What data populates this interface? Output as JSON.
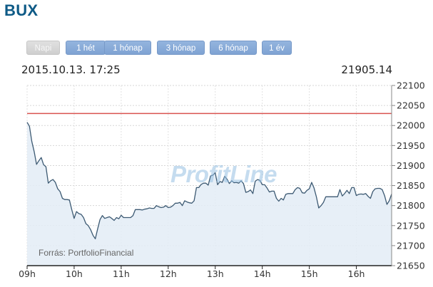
{
  "title": "BUX",
  "tabs": [
    {
      "label": "Napi",
      "active": true
    },
    {
      "label": "1 hét",
      "active": false
    },
    {
      "label": "1 hónap",
      "active": false
    },
    {
      "label": "3 hónap",
      "active": false
    },
    {
      "label": "6 hónap",
      "active": false
    },
    {
      "label": "1 év",
      "active": false
    }
  ],
  "datetime": "2015.10.13. 17:25",
  "current_value": "21905.14",
  "watermark": "ProfitLine",
  "source": "Forrás: PortfolioFinancial",
  "colors": {
    "title": "#0e5a86",
    "line": "#3d5a73",
    "fill": "#e3ecf6",
    "reference_line": "#d9534f",
    "watermark": "#96c0e1"
  },
  "chart_data": {
    "type": "area",
    "xlabel": "",
    "ylabel": "",
    "xlim": [
      9.0,
      16.75
    ],
    "ylim": [
      21650,
      22100
    ],
    "yticks": [
      21650,
      21700,
      21750,
      21800,
      21850,
      21900,
      21950,
      22000,
      22050,
      22100
    ],
    "xticks": [
      {
        "value": 9,
        "label": "09h"
      },
      {
        "value": 10,
        "label": "10h"
      },
      {
        "value": 11,
        "label": "11h"
      },
      {
        "value": 12,
        "label": "12h"
      },
      {
        "value": 13,
        "label": "13h"
      },
      {
        "value": 14,
        "label": "14h"
      },
      {
        "value": 15,
        "label": "15h"
      },
      {
        "value": 16,
        "label": "16h"
      }
    ],
    "reference_line": 22030,
    "grid": true,
    "y_axis_side": "right",
    "series": [
      {
        "points": [
          [
            9.0,
            22008
          ],
          [
            9.05,
            21998
          ],
          [
            9.1,
            21960
          ],
          [
            9.15,
            21935
          ],
          [
            9.2,
            21903
          ],
          [
            9.25,
            21912
          ],
          [
            9.3,
            21920
          ],
          [
            9.35,
            21902
          ],
          [
            9.4,
            21897
          ],
          [
            9.45,
            21856
          ],
          [
            9.5,
            21862
          ],
          [
            9.55,
            21865
          ],
          [
            9.6,
            21858
          ],
          [
            9.65,
            21842
          ],
          [
            9.7,
            21835
          ],
          [
            9.75,
            21818
          ],
          [
            9.8,
            21815
          ],
          [
            9.85,
            21815
          ],
          [
            9.9,
            21814
          ],
          [
            9.95,
            21790
          ],
          [
            10.0,
            21768
          ],
          [
            10.05,
            21785
          ],
          [
            10.1,
            21780
          ],
          [
            10.15,
            21778
          ],
          [
            10.2,
            21770
          ],
          [
            10.25,
            21755
          ],
          [
            10.3,
            21750
          ],
          [
            10.35,
            21740
          ],
          [
            10.4,
            21726
          ],
          [
            10.45,
            21717
          ],
          [
            10.5,
            21742
          ],
          [
            10.55,
            21765
          ],
          [
            10.6,
            21775
          ],
          [
            10.65,
            21768
          ],
          [
            10.7,
            21770
          ],
          [
            10.75,
            21772
          ],
          [
            10.8,
            21768
          ],
          [
            10.85,
            21763
          ],
          [
            10.9,
            21770
          ],
          [
            10.95,
            21767
          ],
          [
            11.0,
            21776
          ],
          [
            11.05,
            21770
          ],
          [
            11.1,
            21770
          ],
          [
            11.15,
            21770
          ],
          [
            11.2,
            21770
          ],
          [
            11.25,
            21775
          ],
          [
            11.3,
            21790
          ],
          [
            11.35,
            21790
          ],
          [
            11.4,
            21790
          ],
          [
            11.45,
            21789
          ],
          [
            11.5,
            21791
          ],
          [
            11.55,
            21792
          ],
          [
            11.6,
            21794
          ],
          [
            11.65,
            21793
          ],
          [
            11.7,
            21793
          ],
          [
            11.75,
            21800
          ],
          [
            11.8,
            21797
          ],
          [
            11.85,
            21795
          ],
          [
            11.9,
            21796
          ],
          [
            11.95,
            21800
          ],
          [
            12.0,
            21795
          ],
          [
            12.05,
            21796
          ],
          [
            12.1,
            21800
          ],
          [
            12.15,
            21806
          ],
          [
            12.2,
            21806
          ],
          [
            12.25,
            21808
          ],
          [
            12.3,
            21800
          ],
          [
            12.35,
            21812
          ],
          [
            12.4,
            21809
          ],
          [
            12.45,
            21807
          ],
          [
            12.5,
            21806
          ],
          [
            12.55,
            21812
          ],
          [
            12.6,
            21845
          ],
          [
            12.65,
            21845
          ],
          [
            12.7,
            21853
          ],
          [
            12.75,
            21856
          ],
          [
            12.8,
            21856
          ],
          [
            12.85,
            21851
          ],
          [
            12.9,
            21874
          ],
          [
            12.95,
            21876
          ],
          [
            13.0,
            21882
          ],
          [
            13.05,
            21852
          ],
          [
            13.1,
            21860
          ],
          [
            13.15,
            21858
          ],
          [
            13.2,
            21873
          ],
          [
            13.25,
            21866
          ],
          [
            13.3,
            21855
          ],
          [
            13.35,
            21862
          ],
          [
            13.4,
            21857
          ],
          [
            13.45,
            21858
          ],
          [
            13.5,
            21856
          ],
          [
            13.55,
            21862
          ],
          [
            13.6,
            21855
          ],
          [
            13.65,
            21833
          ],
          [
            13.7,
            21835
          ],
          [
            13.75,
            21839
          ],
          [
            13.8,
            21830
          ],
          [
            13.85,
            21861
          ],
          [
            13.9,
            21865
          ],
          [
            13.95,
            21863
          ],
          [
            14.0,
            21852
          ],
          [
            14.05,
            21852
          ],
          [
            14.1,
            21844
          ],
          [
            14.15,
            21834
          ],
          [
            14.2,
            21836
          ],
          [
            14.25,
            21836
          ],
          [
            14.3,
            21818
          ],
          [
            14.35,
            21811
          ],
          [
            14.4,
            21818
          ],
          [
            14.45,
            21814
          ],
          [
            14.5,
            21828
          ],
          [
            14.55,
            21830
          ],
          [
            14.6,
            21830
          ],
          [
            14.65,
            21830
          ],
          [
            14.7,
            21840
          ],
          [
            14.75,
            21845
          ],
          [
            14.8,
            21843
          ],
          [
            14.85,
            21832
          ],
          [
            14.9,
            21831
          ],
          [
            14.95,
            21838
          ],
          [
            15.0,
            21842
          ],
          [
            15.05,
            21858
          ],
          [
            15.1,
            21844
          ],
          [
            15.15,
            21822
          ],
          [
            15.2,
            21794
          ],
          [
            15.25,
            21800
          ],
          [
            15.3,
            21808
          ],
          [
            15.35,
            21822
          ],
          [
            15.4,
            21822
          ],
          [
            15.45,
            21822
          ],
          [
            15.5,
            21822
          ],
          [
            15.55,
            21822
          ],
          [
            15.6,
            21822
          ],
          [
            15.65,
            21840
          ],
          [
            15.7,
            21824
          ],
          [
            15.75,
            21830
          ],
          [
            15.8,
            21838
          ],
          [
            15.85,
            21830
          ],
          [
            15.9,
            21845
          ],
          [
            15.95,
            21845
          ],
          [
            16.0,
            21825
          ],
          [
            16.05,
            21828
          ],
          [
            16.1,
            21829
          ],
          [
            16.15,
            21828
          ],
          [
            16.2,
            21830
          ],
          [
            16.25,
            21823
          ],
          [
            16.3,
            21818
          ],
          [
            16.35,
            21835
          ],
          [
            16.4,
            21842
          ],
          [
            16.45,
            21843
          ],
          [
            16.5,
            21843
          ],
          [
            16.55,
            21840
          ],
          [
            16.6,
            21825
          ],
          [
            16.65,
            21803
          ],
          [
            16.7,
            21812
          ],
          [
            16.75,
            21829
          ]
        ]
      }
    ]
  }
}
